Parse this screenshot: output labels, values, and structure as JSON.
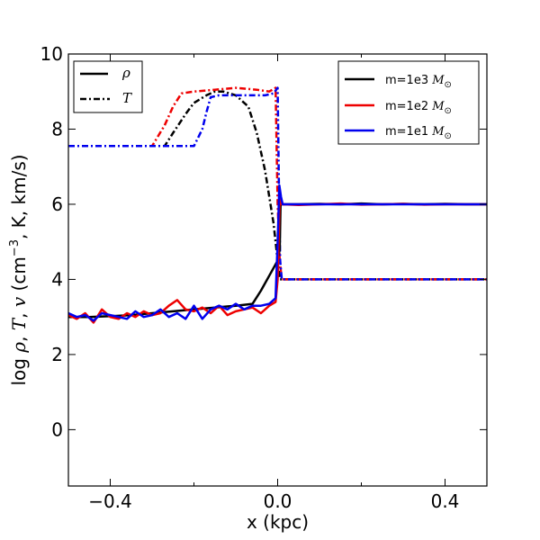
{
  "chart_data": {
    "type": "line",
    "xlabel": "x (kpc)",
    "ylabel_parts": [
      "log ",
      "ρ",
      ", ",
      "T",
      ", ",
      "v",
      " (cm",
      "−3",
      ", K, km/s)"
    ],
    "xlim": [
      -0.5,
      0.5
    ],
    "ylim": [
      -1.5,
      10
    ],
    "xticks": [
      -0.4,
      0.0,
      0.4
    ],
    "xtick_labels": [
      "−0.4",
      "0.0",
      "0.4"
    ],
    "yticks": [
      0,
      2,
      4,
      6,
      8,
      10
    ],
    "ytick_labels": [
      "0",
      "2",
      "4",
      "6",
      "8",
      "10"
    ],
    "legend_style": {
      "placement": "top-left",
      "entries": [
        {
          "label": "ρ",
          "dash": "solid"
        },
        {
          "label": "T",
          "dash": "dashdot"
        }
      ]
    },
    "legend_mass": {
      "placement": "top-right",
      "entries": [
        {
          "prefix": "m=1e3 ",
          "unit": "M",
          "sub": "⊙",
          "color": "#000000"
        },
        {
          "prefix": "m=1e2 ",
          "unit": "M",
          "sub": "⊙",
          "color": "#ee0000"
        },
        {
          "prefix": "m=1e1 ",
          "unit": "M",
          "sub": "⊙",
          "color": "#0000ee"
        }
      ]
    },
    "series": [
      {
        "name": "T m=1e3",
        "color": "#000000",
        "dash": "dashdot",
        "x": [
          -0.5,
          -0.27,
          -0.25,
          -0.22,
          -0.2,
          -0.17,
          -0.15,
          -0.13,
          -0.1,
          -0.07,
          -0.05,
          -0.03,
          -0.01,
          0.0,
          0.005,
          0.01,
          0.5
        ],
        "y": [
          7.55,
          7.55,
          7.9,
          8.4,
          8.7,
          8.9,
          9.0,
          9.0,
          8.9,
          8.6,
          7.9,
          6.9,
          5.5,
          4.5,
          4.0,
          4.0,
          4.0
        ]
      },
      {
        "name": "T m=1e2",
        "color": "#ee0000",
        "dash": "dashdot",
        "x": [
          -0.5,
          -0.3,
          -0.27,
          -0.25,
          -0.23,
          -0.2,
          -0.15,
          -0.1,
          -0.05,
          -0.02,
          -0.005,
          0.0,
          0.005,
          0.01,
          0.5
        ],
        "y": [
          7.55,
          7.55,
          8.1,
          8.6,
          8.95,
          9.0,
          9.05,
          9.1,
          9.05,
          9.0,
          9.1,
          6.0,
          4.5,
          4.0,
          4.0
        ]
      },
      {
        "name": "T m=1e1",
        "color": "#0000ee",
        "dash": "dashdot",
        "x": [
          -0.5,
          -0.2,
          -0.18,
          -0.17,
          -0.16,
          -0.14,
          -0.1,
          -0.06,
          -0.03,
          -0.01,
          0.0,
          0.003,
          0.006,
          0.01,
          0.5
        ],
        "y": [
          7.55,
          7.55,
          8.0,
          8.45,
          8.85,
          8.9,
          8.9,
          8.9,
          8.9,
          8.95,
          9.1,
          6.5,
          4.5,
          4.0,
          4.0
        ]
      },
      {
        "name": "ρ m=1e3",
        "color": "#000000",
        "dash": "solid",
        "x": [
          -0.5,
          -0.45,
          -0.4,
          -0.35,
          -0.3,
          -0.25,
          -0.2,
          -0.15,
          -0.1,
          -0.06,
          -0.04,
          -0.02,
          0.0,
          0.005,
          0.007,
          0.01,
          0.05,
          0.1,
          0.15,
          0.2,
          0.25,
          0.3,
          0.35,
          0.4,
          0.45,
          0.5
        ],
        "y": [
          3.0,
          3.0,
          3.02,
          3.05,
          3.1,
          3.15,
          3.2,
          3.25,
          3.3,
          3.35,
          3.7,
          4.1,
          4.5,
          4.8,
          6.1,
          6.0,
          6.0,
          6.01,
          6.0,
          6.02,
          6.0,
          6.01,
          6.0,
          6.01,
          6.0,
          6.0
        ]
      },
      {
        "name": "ρ m=1e2",
        "color": "#ee0000",
        "dash": "solid",
        "x": [
          -0.5,
          -0.48,
          -0.46,
          -0.44,
          -0.42,
          -0.4,
          -0.38,
          -0.36,
          -0.34,
          -0.32,
          -0.3,
          -0.28,
          -0.26,
          -0.24,
          -0.22,
          -0.2,
          -0.18,
          -0.16,
          -0.14,
          -0.12,
          -0.1,
          -0.08,
          -0.06,
          -0.04,
          -0.02,
          -0.005,
          0.0,
          0.005,
          0.01,
          0.05,
          0.1,
          0.15,
          0.2,
          0.25,
          0.3,
          0.35,
          0.4,
          0.45,
          0.5
        ],
        "y": [
          3.05,
          2.95,
          3.1,
          2.85,
          3.2,
          3.0,
          2.95,
          3.1,
          3.0,
          3.15,
          3.05,
          3.1,
          3.3,
          3.45,
          3.2,
          3.15,
          3.25,
          3.1,
          3.3,
          3.05,
          3.15,
          3.2,
          3.25,
          3.1,
          3.3,
          3.4,
          4.0,
          6.2,
          6.0,
          5.98,
          6.0,
          6.02,
          5.99,
          6.0,
          6.01,
          5.99,
          6.0,
          6.0,
          6.0
        ]
      },
      {
        "name": "ρ m=1e1",
        "color": "#0000ee",
        "dash": "solid",
        "x": [
          -0.5,
          -0.48,
          -0.46,
          -0.44,
          -0.42,
          -0.4,
          -0.38,
          -0.36,
          -0.34,
          -0.32,
          -0.3,
          -0.28,
          -0.26,
          -0.24,
          -0.22,
          -0.2,
          -0.18,
          -0.16,
          -0.14,
          -0.12,
          -0.1,
          -0.08,
          -0.06,
          -0.04,
          -0.02,
          -0.005,
          0.0,
          0.004,
          0.008,
          0.012,
          0.05,
          0.1,
          0.15,
          0.2,
          0.25,
          0.3,
          0.35,
          0.4,
          0.45,
          0.5
        ],
        "y": [
          3.1,
          3.0,
          3.05,
          2.9,
          3.1,
          3.05,
          3.0,
          2.95,
          3.15,
          3.0,
          3.05,
          3.2,
          3.0,
          3.1,
          2.95,
          3.3,
          2.95,
          3.2,
          3.3,
          3.2,
          3.35,
          3.2,
          3.3,
          3.3,
          3.35,
          3.5,
          5.0,
          6.5,
          6.2,
          6.0,
          6.0,
          6.0,
          6.0,
          6.0,
          6.0,
          6.0,
          6.0,
          6.0,
          6.0,
          6.0
        ]
      }
    ]
  }
}
